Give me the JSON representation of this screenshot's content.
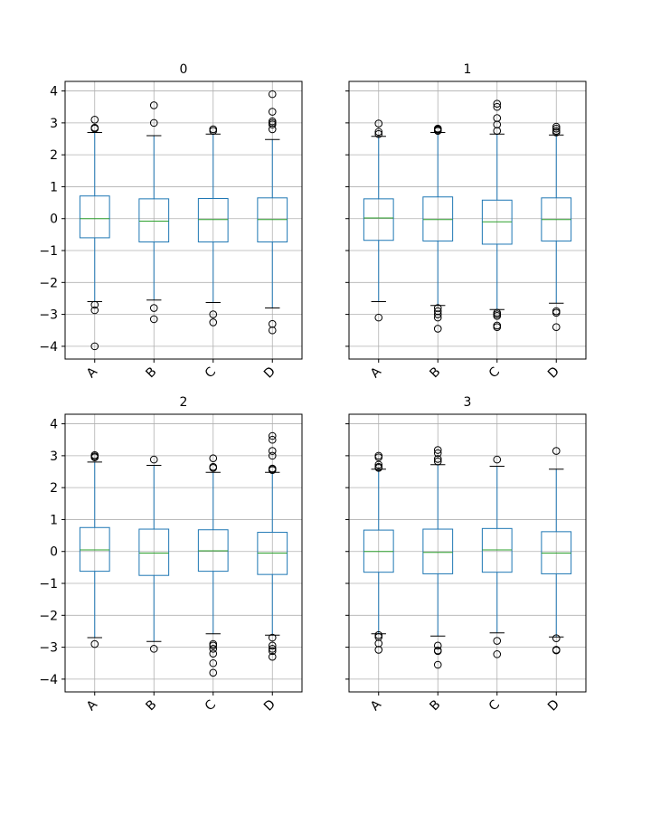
{
  "chart_data": {
    "type": "boxplot",
    "categories": [
      "A",
      "B",
      "C",
      "D"
    ],
    "ylim": [
      -4.4,
      4.3
    ],
    "yticks": [
      -4,
      -3,
      -2,
      -1,
      0,
      1,
      2,
      3,
      4
    ],
    "grid": true,
    "sharey": true,
    "colors": {
      "box": "#1f77b4",
      "median": "#2ca02c",
      "cap": "#000000",
      "flier": "#000000",
      "grid": "#b0b0b0"
    },
    "panels": [
      {
        "title": "0",
        "boxes": [
          {
            "name": "A",
            "whislo": -2.6,
            "q1": -0.6,
            "med": 0.0,
            "q3": 0.71,
            "whishi": 2.7,
            "fliers": [
              2.82,
              2.85,
              3.1,
              -2.7,
              -2.87,
              -4.0
            ]
          },
          {
            "name": "B",
            "whislo": -2.55,
            "q1": -0.73,
            "med": -0.08,
            "q3": 0.62,
            "whishi": 2.6,
            "fliers": [
              3.0,
              3.55,
              -2.8,
              -3.15
            ]
          },
          {
            "name": "C",
            "whislo": -2.63,
            "q1": -0.73,
            "med": -0.03,
            "q3": 0.63,
            "whishi": 2.65,
            "fliers": [
              2.75,
              2.8,
              -3.0,
              -3.25
            ]
          },
          {
            "name": "D",
            "whislo": -2.8,
            "q1": -0.73,
            "med": -0.03,
            "q3": 0.65,
            "whishi": 2.48,
            "fliers": [
              2.8,
              2.95,
              3.0,
              3.05,
              3.35,
              3.9,
              -3.3,
              -3.5
            ]
          }
        ]
      },
      {
        "title": "1",
        "boxes": [
          {
            "name": "A",
            "whislo": -2.6,
            "q1": -0.68,
            "med": 0.02,
            "q3": 0.62,
            "whishi": 2.58,
            "fliers": [
              2.65,
              2.72,
              2.98,
              -3.1
            ]
          },
          {
            "name": "B",
            "whislo": -2.72,
            "q1": -0.7,
            "med": -0.03,
            "q3": 0.68,
            "whishi": 2.7,
            "fliers": [
              2.75,
              2.78,
              2.8,
              2.82,
              -2.8,
              -2.9,
              -3.0,
              -3.1,
              -3.45
            ]
          },
          {
            "name": "C",
            "whislo": -2.85,
            "q1": -0.8,
            "med": -0.1,
            "q3": 0.58,
            "whishi": 2.65,
            "fliers": [
              2.75,
              2.95,
              3.15,
              3.5,
              3.6,
              -2.95,
              -3.0,
              -3.05,
              -3.35,
              -3.4
            ]
          },
          {
            "name": "D",
            "whislo": -2.65,
            "q1": -0.7,
            "med": -0.03,
            "q3": 0.65,
            "whishi": 2.62,
            "fliers": [
              2.7,
              2.75,
              2.82,
              2.88,
              -2.9,
              -2.95,
              -3.4
            ]
          }
        ]
      },
      {
        "title": "2",
        "boxes": [
          {
            "name": "A",
            "whislo": -2.7,
            "q1": -0.62,
            "med": 0.05,
            "q3": 0.75,
            "whishi": 2.8,
            "fliers": [
              2.95,
              2.98,
              3.02,
              -2.9
            ]
          },
          {
            "name": "B",
            "whislo": -2.82,
            "q1": -0.75,
            "med": -0.05,
            "q3": 0.7,
            "whishi": 2.7,
            "fliers": [
              2.88,
              -3.05
            ]
          },
          {
            "name": "C",
            "whislo": -2.58,
            "q1": -0.62,
            "med": 0.02,
            "q3": 0.68,
            "whishi": 2.48,
            "fliers": [
              2.62,
              2.65,
              2.92,
              -2.9,
              -2.95,
              -3.05,
              -3.2,
              -3.5,
              -3.8
            ]
          },
          {
            "name": "D",
            "whislo": -2.62,
            "q1": -0.72,
            "med": -0.05,
            "q3": 0.6,
            "whishi": 2.48,
            "fliers": [
              2.55,
              2.58,
              2.6,
              3.0,
              3.15,
              3.5,
              3.62,
              -2.7,
              -2.95,
              -3.05,
              -3.12,
              -3.3
            ]
          }
        ]
      },
      {
        "title": "3",
        "boxes": [
          {
            "name": "A",
            "whislo": -2.58,
            "q1": -0.65,
            "med": 0.0,
            "q3": 0.67,
            "whishi": 2.58,
            "fliers": [
              2.62,
              2.65,
              2.72,
              2.95,
              3.0,
              -2.62,
              -2.68,
              -2.88,
              -3.08
            ]
          },
          {
            "name": "B",
            "whislo": -2.65,
            "q1": -0.7,
            "med": -0.03,
            "q3": 0.7,
            "whishi": 2.72,
            "fliers": [
              2.82,
              2.9,
              3.08,
              3.18,
              -2.95,
              -3.1,
              -3.12,
              -3.55
            ]
          },
          {
            "name": "C",
            "whislo": -2.55,
            "q1": -0.65,
            "med": 0.05,
            "q3": 0.72,
            "whishi": 2.67,
            "fliers": [
              2.88,
              -2.8,
              -3.22
            ]
          },
          {
            "name": "D",
            "whislo": -2.68,
            "q1": -0.7,
            "med": -0.05,
            "q3": 0.62,
            "whishi": 2.58,
            "fliers": [
              3.15,
              -2.72,
              -3.08,
              -3.1
            ]
          }
        ]
      }
    ]
  }
}
